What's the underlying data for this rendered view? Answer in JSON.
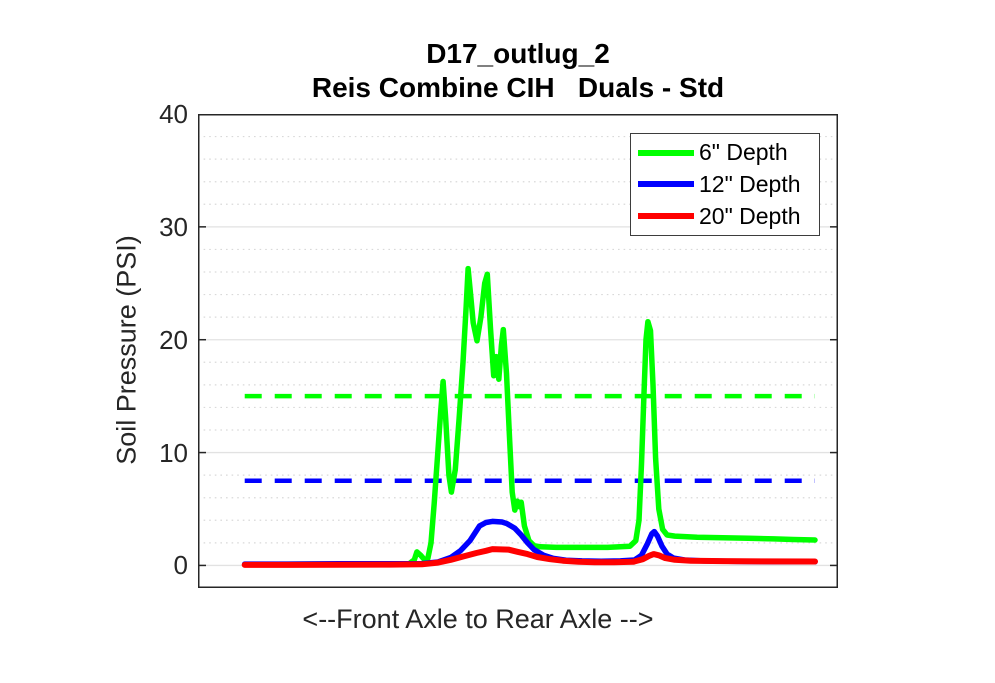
{
  "figure": {
    "background": "#ffffff",
    "axis_color": "#262626",
    "grid_major_color": "#e2e2e2",
    "grid_minor_color": "#d9d9d9"
  },
  "chart_data": {
    "type": "line",
    "title": "D17_outlug_2",
    "subtitle": "Reis Combine CIH   Duals - Std",
    "xlabel": "<--Front Axle to Rear Axle -->",
    "ylabel": "Soil Pressure (PSI)",
    "ylim": [
      -2,
      40
    ],
    "yticks": [
      0,
      10,
      20,
      30,
      40
    ],
    "ytick_labels": [
      "0",
      "10",
      "20",
      "30",
      "40"
    ],
    "y_minor_step": 2,
    "grid": {
      "y_major": "solid",
      "y_minor": "dotted",
      "x": "none"
    },
    "x_units": "percent of axis width (no x tick labels shown)",
    "legend": {
      "position": "top-right",
      "entries": [
        {
          "label": "6\" Depth",
          "color": "#00ff00"
        },
        {
          "label": "12\" Depth",
          "color": "#0000ff"
        },
        {
          "label": "20\" Depth",
          "color": "#ff0000"
        }
      ]
    },
    "series": [
      {
        "id": "ref-6in-dashed",
        "name": "6\" Depth mean reference",
        "type": "hline",
        "y": 15,
        "x_range": [
          7.3,
          96.4
        ],
        "color": "#00ff00",
        "style": "dashed",
        "width": 4.5,
        "dash": [
          17,
          13
        ]
      },
      {
        "id": "ref-12in-dashed",
        "name": "12\" Depth mean reference",
        "type": "hline",
        "y": 7.5,
        "x_range": [
          7.3,
          96.4
        ],
        "color": "#0000ff",
        "style": "dashed",
        "width": 4.5,
        "dash": [
          17,
          13
        ]
      },
      {
        "id": "series-6in",
        "name": "6\" Depth",
        "type": "line",
        "color": "#00ff00",
        "style": "solid",
        "width": 5.5,
        "points": [
          [
            7.3,
            0.1
          ],
          [
            12,
            0.1
          ],
          [
            18,
            0.12
          ],
          [
            24,
            0.12
          ],
          [
            30,
            0.13
          ],
          [
            33,
            0.15
          ],
          [
            33.8,
            0.5
          ],
          [
            34.2,
            1.2
          ],
          [
            34.8,
            0.9
          ],
          [
            35.4,
            0.5
          ],
          [
            35.9,
            0.6
          ],
          [
            36.4,
            2
          ],
          [
            36.9,
            5.5
          ],
          [
            37.4,
            9.5
          ],
          [
            37.9,
            13.5
          ],
          [
            38.3,
            16.3
          ],
          [
            38.7,
            13
          ],
          [
            39.2,
            8
          ],
          [
            39.6,
            6.5
          ],
          [
            40.2,
            8.5
          ],
          [
            40.8,
            13
          ],
          [
            41.4,
            18
          ],
          [
            41.9,
            23
          ],
          [
            42.2,
            26.3
          ],
          [
            42.6,
            24
          ],
          [
            43,
            21.5
          ],
          [
            43.6,
            19.9
          ],
          [
            44.2,
            22
          ],
          [
            44.8,
            25
          ],
          [
            45.2,
            25.8
          ],
          [
            45.7,
            21
          ],
          [
            46.2,
            16.8
          ],
          [
            46.6,
            18.5
          ],
          [
            47,
            16.5
          ],
          [
            47.4,
            19.5
          ],
          [
            47.7,
            20.9
          ],
          [
            48.2,
            17
          ],
          [
            48.7,
            11
          ],
          [
            49.1,
            6.5
          ],
          [
            49.5,
            4.9
          ],
          [
            49.9,
            5.7
          ],
          [
            50.2,
            5.2
          ],
          [
            50.5,
            5.6
          ],
          [
            51,
            3.5
          ],
          [
            51.7,
            2.2
          ],
          [
            52.5,
            1.75
          ],
          [
            53.5,
            1.65
          ],
          [
            56,
            1.6
          ],
          [
            60,
            1.6
          ],
          [
            64,
            1.6
          ],
          [
            67.5,
            1.7
          ],
          [
            68.4,
            2.2
          ],
          [
            68.9,
            4
          ],
          [
            69.3,
            9
          ],
          [
            69.7,
            15.5
          ],
          [
            70,
            20
          ],
          [
            70.3,
            21.6
          ],
          [
            70.7,
            20.8
          ],
          [
            71.1,
            16
          ],
          [
            71.5,
            9.5
          ],
          [
            72,
            5
          ],
          [
            72.6,
            3.2
          ],
          [
            73.3,
            2.7
          ],
          [
            74.5,
            2.6
          ],
          [
            78,
            2.5
          ],
          [
            82,
            2.45
          ],
          [
            86,
            2.4
          ],
          [
            90,
            2.35
          ],
          [
            93,
            2.3
          ],
          [
            96.4,
            2.25
          ]
        ]
      },
      {
        "id": "series-12in",
        "name": "12\" Depth",
        "type": "line",
        "color": "#0000ff",
        "style": "solid",
        "width": 5.5,
        "points": [
          [
            7.3,
            0.12
          ],
          [
            14,
            0.12
          ],
          [
            22,
            0.14
          ],
          [
            30,
            0.15
          ],
          [
            35,
            0.16
          ],
          [
            37.5,
            0.3
          ],
          [
            39.5,
            0.7
          ],
          [
            41,
            1.3
          ],
          [
            42.5,
            2.2
          ],
          [
            44,
            3.5
          ],
          [
            45,
            3.8
          ],
          [
            46,
            3.9
          ],
          [
            47.5,
            3.85
          ],
          [
            48.3,
            3.7
          ],
          [
            49.5,
            3.3
          ],
          [
            50.5,
            2.7
          ],
          [
            51.5,
            2
          ],
          [
            52.5,
            1.4
          ],
          [
            54,
            0.9
          ],
          [
            55.5,
            0.62
          ],
          [
            57.5,
            0.46
          ],
          [
            60,
            0.4
          ],
          [
            63,
            0.37
          ],
          [
            66,
            0.4
          ],
          [
            68.2,
            0.48
          ],
          [
            69.3,
            0.9
          ],
          [
            70.2,
            1.9
          ],
          [
            70.9,
            2.8
          ],
          [
            71.3,
            3
          ],
          [
            71.8,
            2.6
          ],
          [
            72.5,
            1.7
          ],
          [
            73.3,
            1
          ],
          [
            74.3,
            0.65
          ],
          [
            76,
            0.48
          ],
          [
            79,
            0.4
          ],
          [
            84,
            0.36
          ],
          [
            90,
            0.33
          ],
          [
            96.4,
            0.32
          ]
        ]
      },
      {
        "id": "series-20in",
        "name": "20\" Depth",
        "type": "line",
        "color": "#ff0000",
        "style": "solid",
        "width": 6,
        "points": [
          [
            7.3,
            0.05
          ],
          [
            14,
            0.05
          ],
          [
            22,
            0.06
          ],
          [
            30,
            0.07
          ],
          [
            35,
            0.1
          ],
          [
            37.5,
            0.25
          ],
          [
            39.5,
            0.5
          ],
          [
            41.5,
            0.8
          ],
          [
            43.5,
            1.1
          ],
          [
            45,
            1.3
          ],
          [
            46,
            1.45
          ],
          [
            48.5,
            1.4
          ],
          [
            50,
            1.2
          ],
          [
            51.5,
            1
          ],
          [
            53,
            0.75
          ],
          [
            55,
            0.55
          ],
          [
            57,
            0.42
          ],
          [
            59.5,
            0.32
          ],
          [
            62,
            0.28
          ],
          [
            65,
            0.28
          ],
          [
            68,
            0.32
          ],
          [
            69.5,
            0.55
          ],
          [
            70.5,
            0.85
          ],
          [
            71.2,
            1
          ],
          [
            72,
            0.9
          ],
          [
            73,
            0.65
          ],
          [
            74.5,
            0.5
          ],
          [
            77,
            0.42
          ],
          [
            82,
            0.38
          ],
          [
            88,
            0.36
          ],
          [
            96.4,
            0.35
          ]
        ]
      }
    ]
  }
}
